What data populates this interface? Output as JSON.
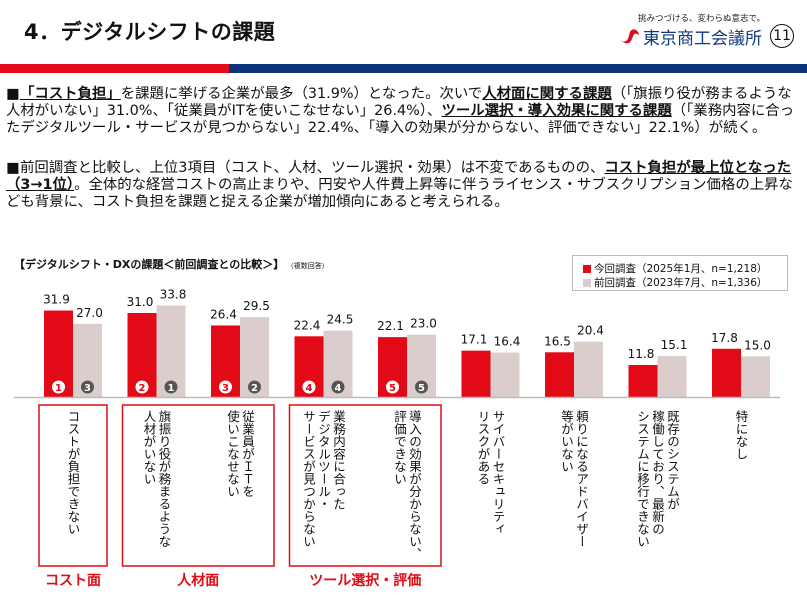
{
  "header": {
    "title": "4．デジタルシフトの課題",
    "slogan": "挑みつづける、変わらぬ意志で。",
    "org_name": "東京商工会議所",
    "page_number": "11"
  },
  "colors": {
    "current": "#e10a16",
    "previous": "#dccdcd",
    "brand_blue": "#0b347a",
    "rank_badge_prev": "#555555"
  },
  "summary": {
    "p1": [
      {
        "t": "「コスト負担」",
        "b": true
      },
      {
        "t": "を課題に挙げる企業が最多（31.9%）となった。次いで",
        "b": false
      },
      {
        "t": "人材面に関する課題",
        "b": true
      },
      {
        "t": "（「旗振り役が務まるような人材がいない」31.0%、「従業員がITを使いこなせない」26.4%）、",
        "b": false
      },
      {
        "t": "ツール選択・導入効果に関する課題",
        "b": true
      },
      {
        "t": "（「業務内容に合ったデジタルツール・サービスが見つからない」22.4%、「導入の効果が分からない、評価できない」22.1%）が続く。",
        "b": false
      }
    ],
    "p2": [
      {
        "t": "前回調査と比較し、上位3項目（コスト、人材、ツール選択・効果）は不変であるものの、",
        "b": false
      },
      {
        "t": "コスト負担が最上位となった（3→1位）",
        "b": true
      },
      {
        "t": "。全体的な経営コストの高止まりや、円安や人件費上昇等に伴うライセンス・サブスクリプション価格の上昇なども背景に、コスト負担を課題と捉える企業が増加傾向にあると考えられる。",
        "b": false
      }
    ]
  },
  "chart_data": {
    "type": "bar",
    "title": "【デジタルシフト・DXの課題＜前回調査との比較＞】",
    "note": "（複数回答）",
    "legend_position": "top-right",
    "ylim": [
      0,
      40
    ],
    "categories": [
      "コストが負担できない",
      "旗振り役が務まるような人材がいない",
      "従業員がＩＴを使いこなせない",
      "業務内容に合ったデジタルツール・サービスが見つからない",
      "導入の効果が分からない、評価できない",
      "サイバーセキュリティリスクがある",
      "頼りになるアドバイザー等がいない",
      "既存のシステムが稼働しており、最新のシステムに移行できない",
      "特になし"
    ],
    "category_lines": [
      [
        "コストが負担できない"
      ],
      [
        "旗振り役が務まるような",
        "人材がいない"
      ],
      [
        "従業員がＩＴを",
        "使いこなせない"
      ],
      [
        "業務内容に合った",
        "デジタルツール・",
        "サービスが見つからない"
      ],
      [
        "導入の効果が分からない、",
        "評価できない"
      ],
      [
        "サイバーセキュリティ",
        "リスクがある"
      ],
      [
        "頼りになるアドバイザー",
        "等がいない"
      ],
      [
        "既存のシステムが",
        "稼働しており、最新の",
        "システムに移行できない"
      ],
      [
        "特になし"
      ]
    ],
    "series": [
      {
        "name": "今回調査（2025年1月、n=1,218）",
        "values": [
          31.9,
          31.0,
          26.4,
          22.4,
          22.1,
          17.1,
          16.5,
          11.8,
          17.8
        ],
        "ranks": [
          1,
          2,
          3,
          4,
          5,
          null,
          null,
          null,
          null
        ]
      },
      {
        "name": "前回調査（2023年7月、n=1,336）",
        "values": [
          27.0,
          33.8,
          29.5,
          24.5,
          23.0,
          16.4,
          20.4,
          15.1,
          15.0
        ],
        "ranks": [
          3,
          1,
          2,
          4,
          5,
          null,
          null,
          null,
          null
        ]
      }
    ],
    "groups": [
      {
        "label": "コスト面",
        "from": 0,
        "to": 0
      },
      {
        "label": "人材面",
        "from": 1,
        "to": 2
      },
      {
        "label": "ツール選択・評価",
        "from": 3,
        "to": 4
      }
    ]
  }
}
